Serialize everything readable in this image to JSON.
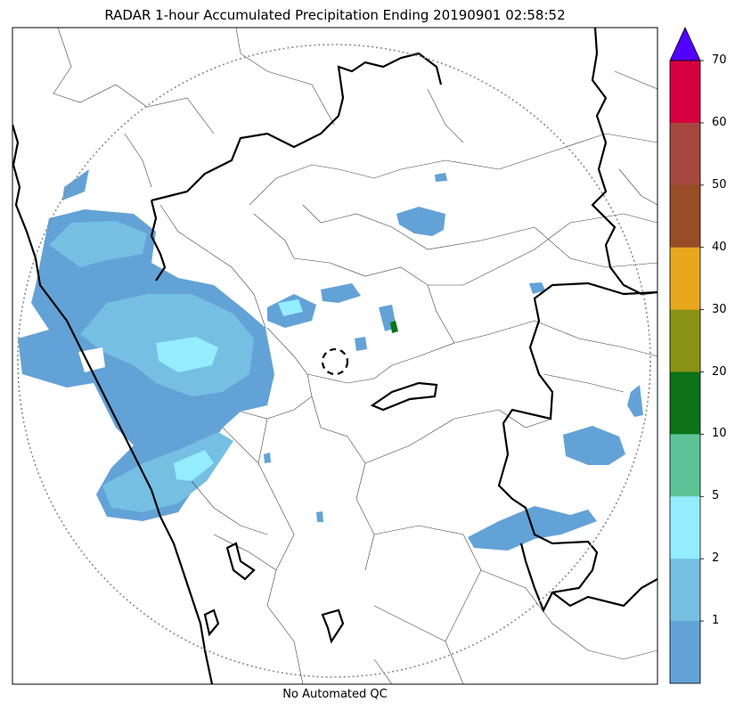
{
  "title": "RADAR 1-hour Accumulated Precipitation Ending 20190901 02:58:52",
  "caption": "No Automated QC",
  "colorbar": {
    "labels": [
      "70",
      "60",
      "50",
      "40",
      "30",
      "20",
      "10",
      "5",
      "2",
      "1"
    ],
    "colors": [
      "#d6003f",
      "#a5483f",
      "#974d26",
      "#e9a71d",
      "#8a9215",
      "#0d7318",
      "#5cc396",
      "#94ecff",
      "#75bfe3",
      "#63a2d6"
    ],
    "extend_color": "#5200ff",
    "extend": "max"
  },
  "map_features": {
    "radar_range_ring": "dotted",
    "radar_site_marker": "dashed-circle",
    "state_borders": "thick",
    "district_borders": "thin"
  }
}
